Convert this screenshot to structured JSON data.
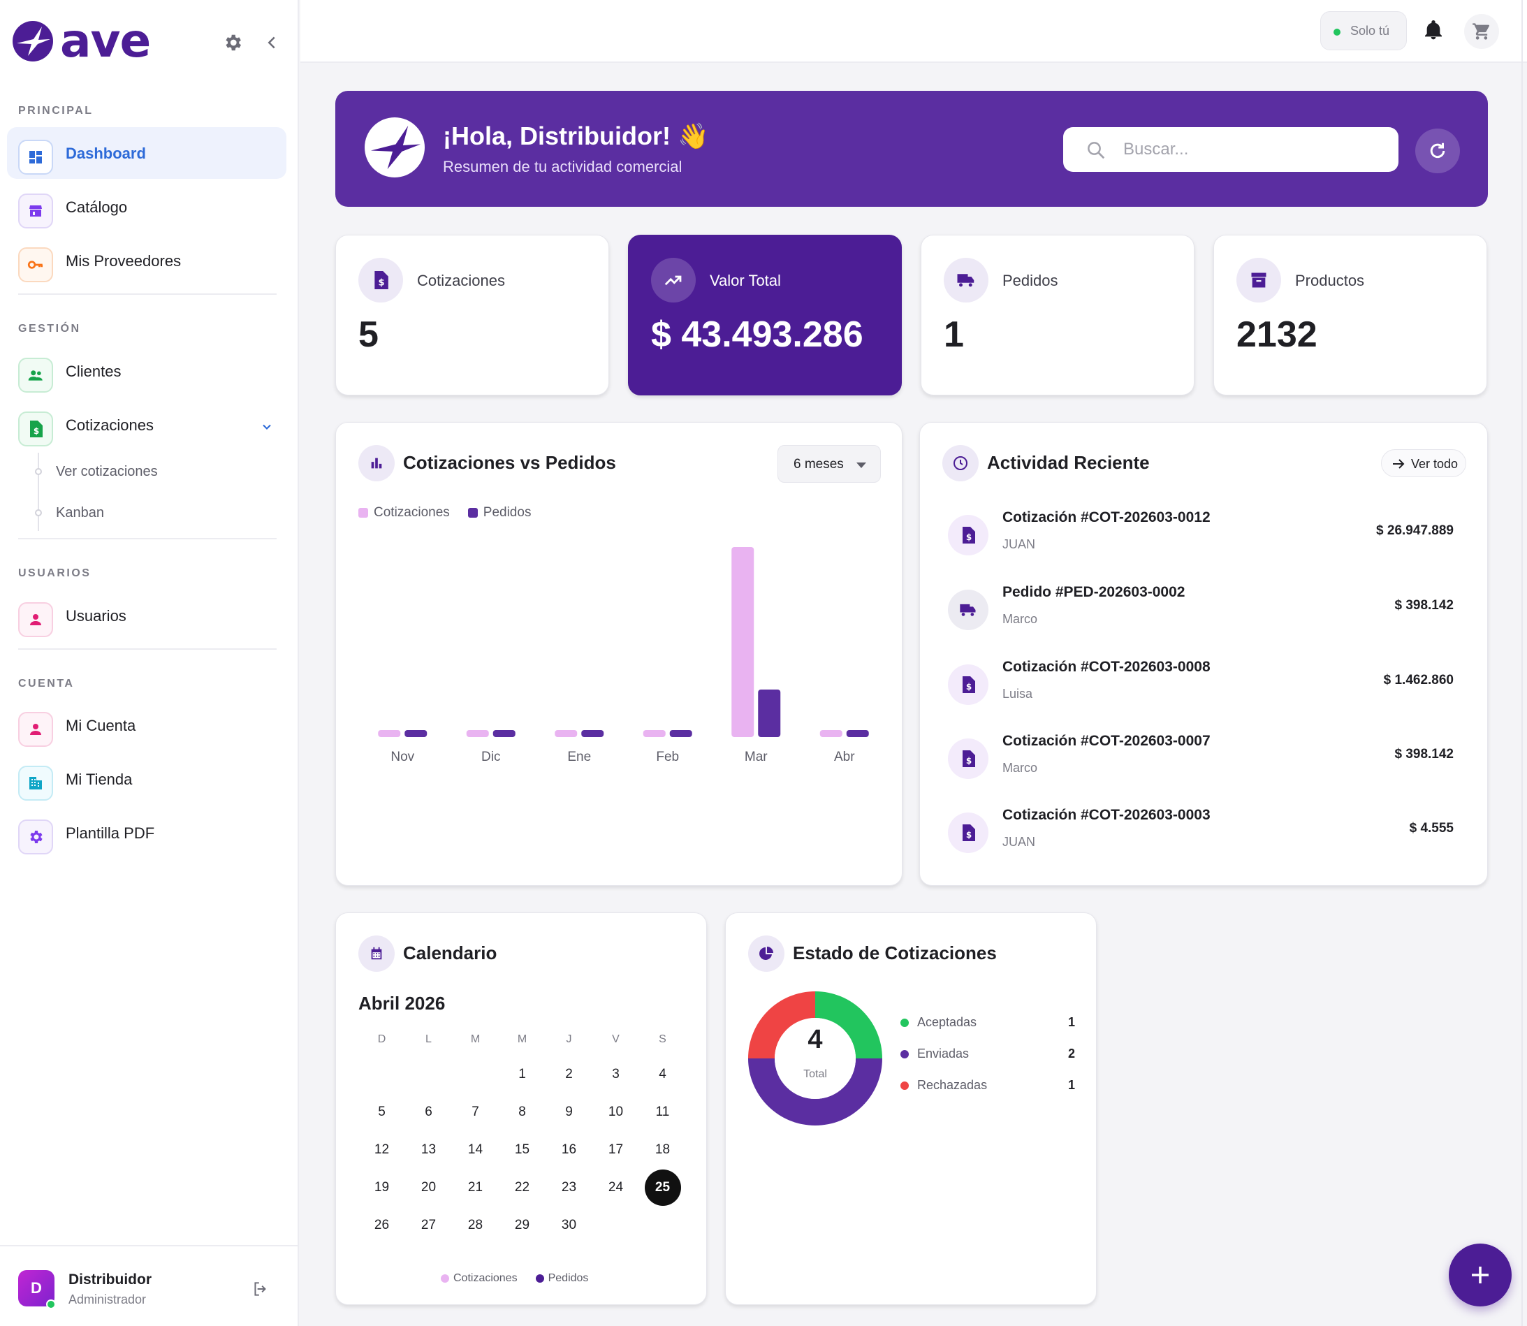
{
  "brand": {
    "name": "ave"
  },
  "sidebar": {
    "sections": [
      {
        "title": "PRINCIPAL"
      },
      {
        "title": "GESTIÓN"
      },
      {
        "title": "USUARIOS"
      },
      {
        "title": "CUENTA"
      }
    ],
    "items": [
      {
        "label": "Dashboard",
        "icon": "dashboard-icon",
        "color": "#2d6ad8"
      },
      {
        "label": "Catálogo",
        "icon": "store-icon",
        "color": "#7c3aed"
      },
      {
        "label": "Mis Proveedores",
        "icon": "key-icon",
        "color": "#f97316"
      },
      {
        "label": "Clientes",
        "icon": "people-icon",
        "color": "#16a34a"
      },
      {
        "label": "Cotizaciones",
        "icon": "invoice-icon",
        "color": "#16a34a"
      },
      {
        "label": "Usuarios",
        "icon": "person-icon",
        "color": "#e11d74"
      },
      {
        "label": "Mi Cuenta",
        "icon": "person-icon",
        "color": "#e11d74"
      },
      {
        "label": "Mi Tienda",
        "icon": "building-icon",
        "color": "#0ea5c6"
      },
      {
        "label": "Plantilla PDF",
        "icon": "gear-icon",
        "color": "#7c3aed"
      }
    ],
    "sub_items": [
      {
        "label": "Ver cotizaciones"
      },
      {
        "label": "Kanban"
      }
    ],
    "user": {
      "initial": "D",
      "name": "Distribuidor",
      "role": "Administrador"
    }
  },
  "topbar": {
    "status_label": "Solo tú",
    "status_color": "#22c55e"
  },
  "hero": {
    "title": "¡Hola, Distribuidor! 👋",
    "subtitle": "Resumen de tu actividad comercial",
    "search_placeholder": "Buscar..."
  },
  "stats": [
    {
      "label": "Cotizaciones",
      "value": "5",
      "icon": "invoice-icon"
    },
    {
      "label": "Valor Total",
      "value": "$ 43.493.286",
      "icon": "trending-up-icon"
    },
    {
      "label": "Pedidos",
      "value": "1",
      "icon": "truck-icon"
    },
    {
      "label": "Productos",
      "value": "2132",
      "icon": "archive-icon"
    }
  ],
  "chart_panel": {
    "title": "Cotizaciones vs Pedidos",
    "range": "6 meses",
    "legend": [
      "Cotizaciones",
      "Pedidos"
    ]
  },
  "chart_data": {
    "type": "bar",
    "categories": [
      "Nov",
      "Dic",
      "Ene",
      "Feb",
      "Mar",
      "Abr"
    ],
    "series": [
      {
        "name": "Cotizaciones",
        "values": [
          0,
          0,
          0,
          0,
          4,
          0
        ],
        "color": "#e9b3f1"
      },
      {
        "name": "Pedidos",
        "values": [
          0,
          0,
          0,
          0,
          1,
          0
        ],
        "color": "#5b2ea1"
      }
    ],
    "ylim": [
      0,
      4
    ],
    "grid": false,
    "legend_position": "top-left"
  },
  "activity": {
    "title": "Actividad Reciente",
    "view_all": "Ver todo",
    "items": [
      {
        "title": "Cotización #COT-202603-0012",
        "sub": "JUAN",
        "amount": "$ 26.947.889",
        "icon": "invoice-icon"
      },
      {
        "title": "Pedido #PED-202603-0002",
        "sub": "Marco",
        "amount": "$ 398.142",
        "icon": "truck-icon"
      },
      {
        "title": "Cotización #COT-202603-0008",
        "sub": "Luisa",
        "amount": "$ 1.462.860",
        "icon": "invoice-icon"
      },
      {
        "title": "Cotización #COT-202603-0007",
        "sub": "Marco",
        "amount": "$ 398.142",
        "icon": "invoice-icon"
      },
      {
        "title": "Cotización #COT-202603-0003",
        "sub": "JUAN",
        "amount": "$ 4.555",
        "icon": "invoice-icon"
      }
    ]
  },
  "calendar": {
    "title": "Calendario",
    "month": "Abril 2026",
    "weekdays": [
      "D",
      "L",
      "M",
      "M",
      "J",
      "V",
      "S"
    ],
    "weeks": [
      [
        "",
        "",
        "",
        "1",
        "2",
        "3",
        "4"
      ],
      [
        "5",
        "6",
        "7",
        "8",
        "9",
        "10",
        "11"
      ],
      [
        "12",
        "13",
        "14",
        "15",
        "16",
        "17",
        "18"
      ],
      [
        "19",
        "20",
        "21",
        "22",
        "23",
        "24",
        "25"
      ],
      [
        "26",
        "27",
        "28",
        "29",
        "30",
        "",
        ""
      ]
    ],
    "today": "25",
    "legend": [
      "Cotizaciones",
      "Pedidos"
    ]
  },
  "estado": {
    "title": "Estado de Cotizaciones",
    "total": "4",
    "total_label": "Total",
    "items": [
      {
        "label": "Aceptadas",
        "count": "1",
        "value": 1,
        "color": "#22c55e"
      },
      {
        "label": "Enviadas",
        "count": "2",
        "value": 2,
        "color": "#5b2ea1"
      },
      {
        "label": "Rechazadas",
        "count": "1",
        "value": 1,
        "color": "#ef4444"
      }
    ]
  }
}
